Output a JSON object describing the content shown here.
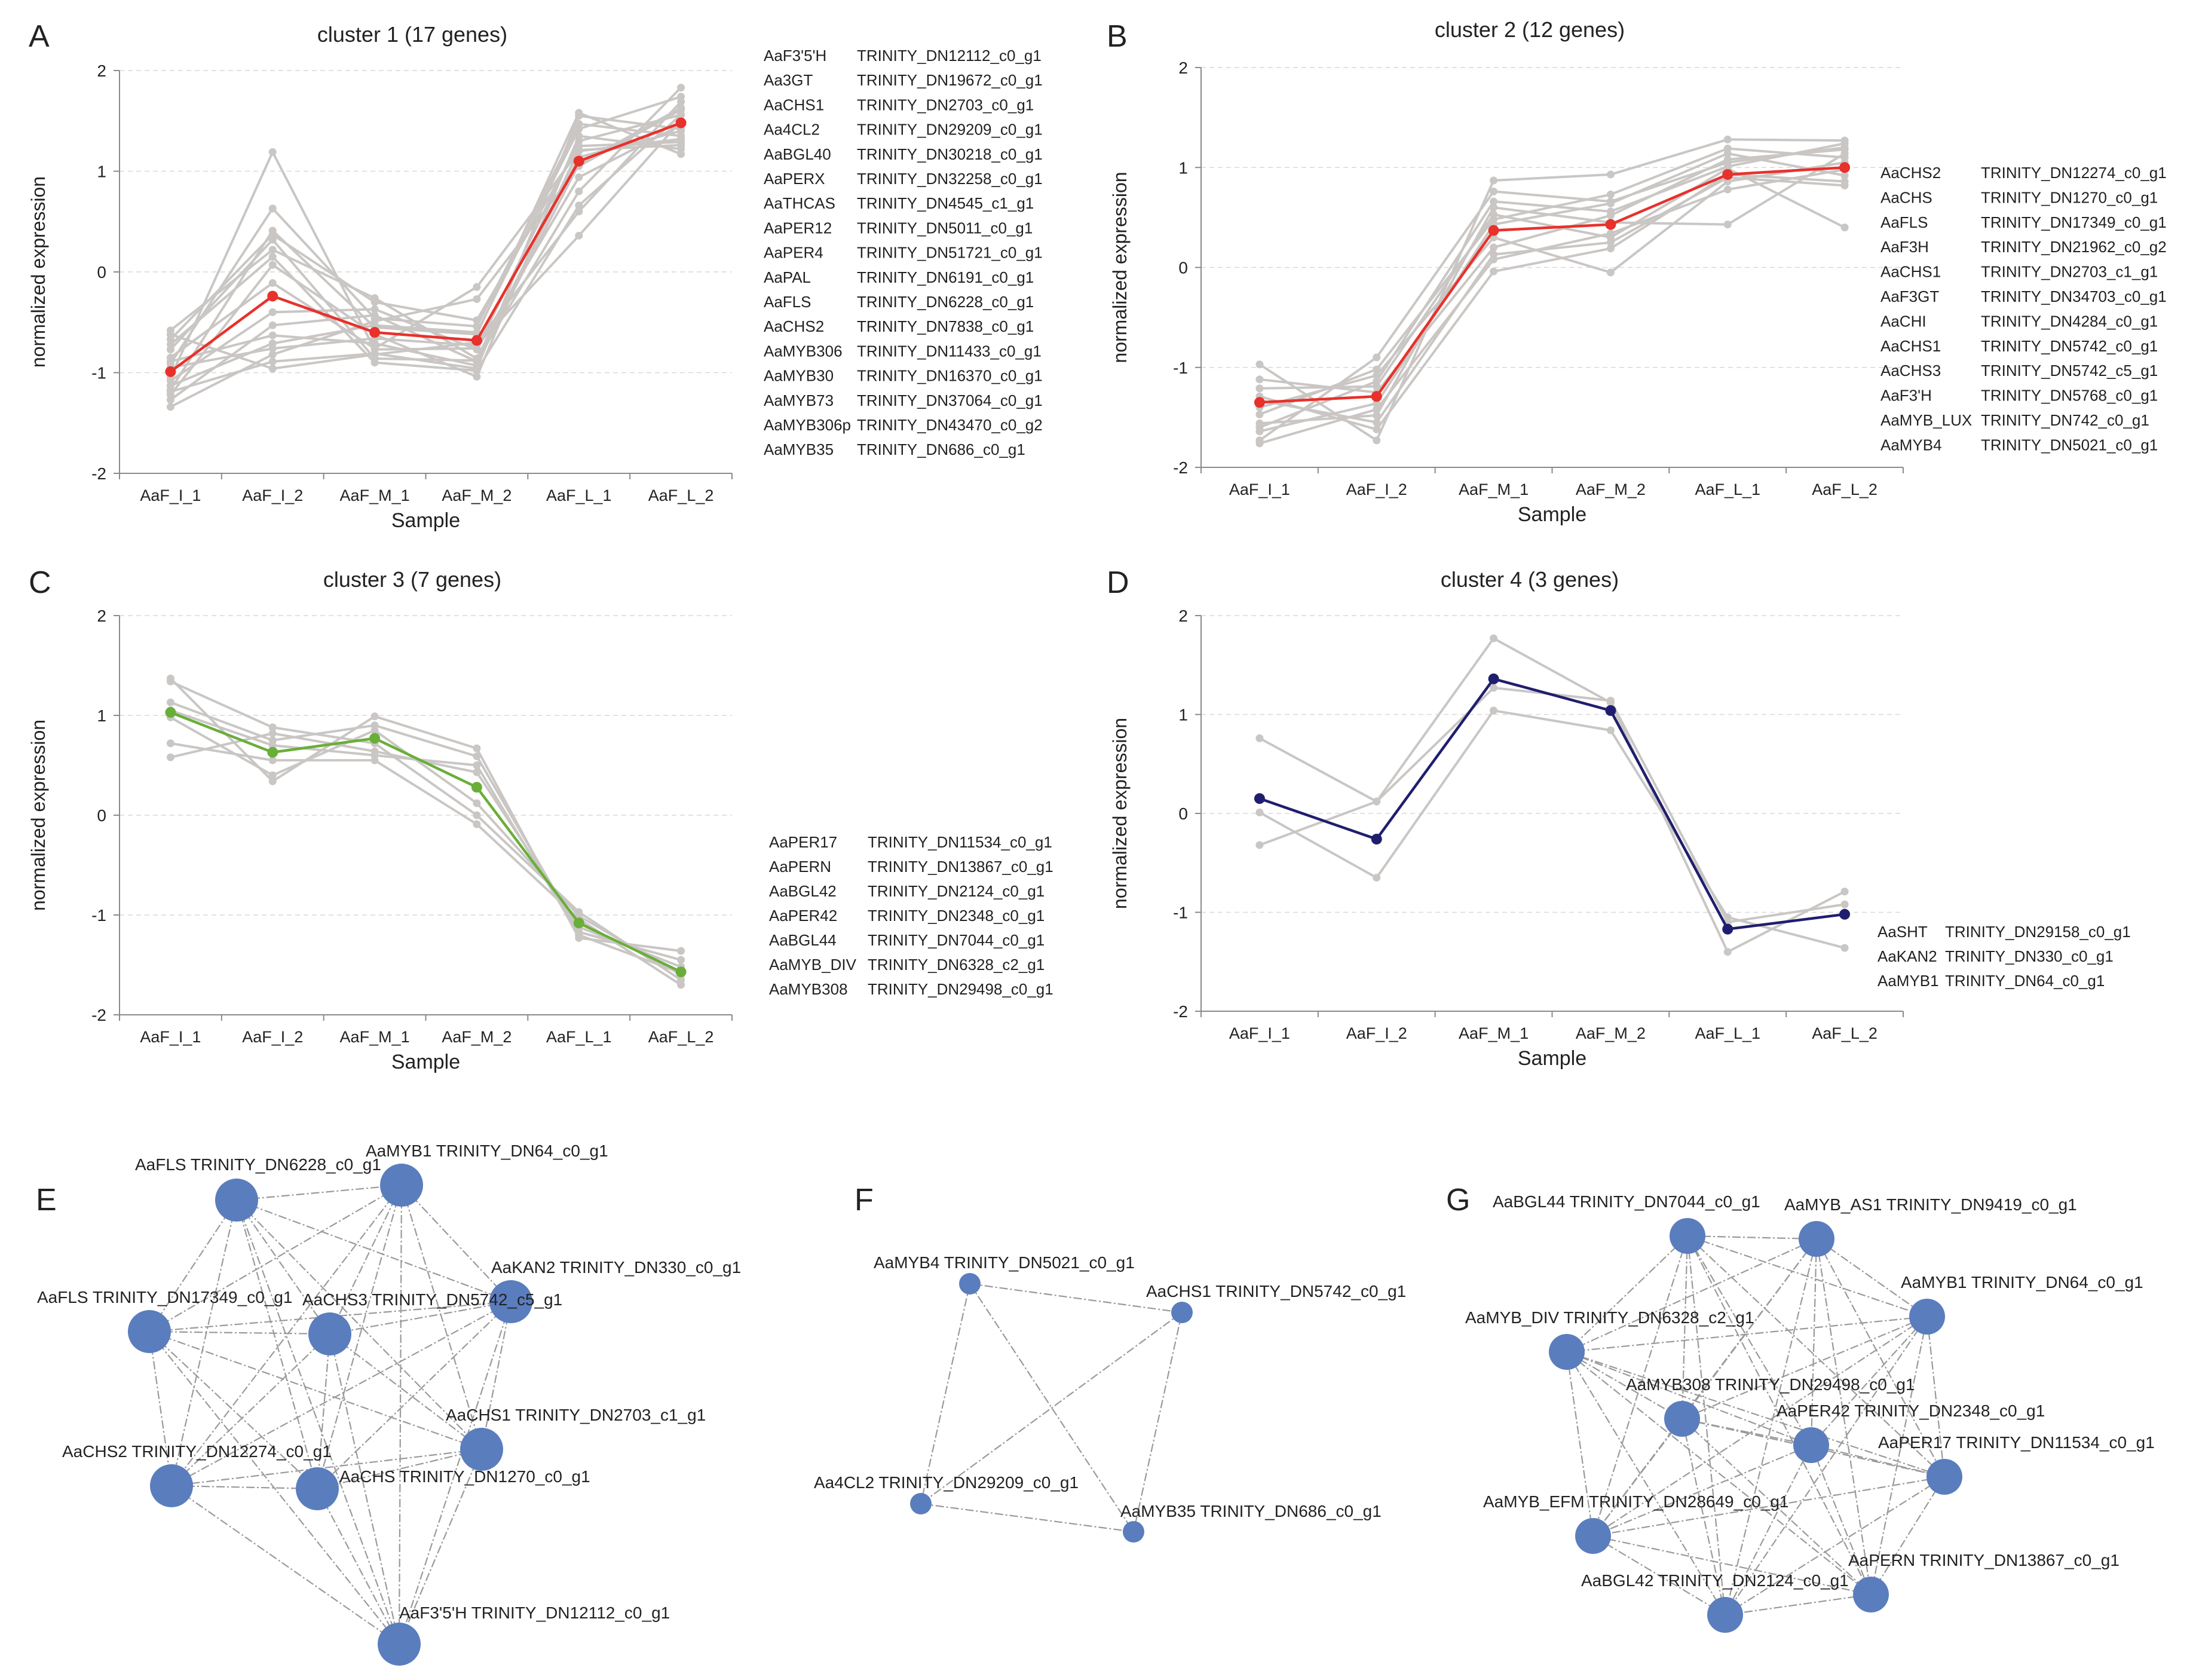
{
  "colors": {
    "background_line": "#c9c6c4",
    "cluster_1": "#e8312b",
    "cluster_2": "#e8312b",
    "cluster_3": "#6aae3a",
    "cluster_4": "#1f1e6e",
    "node": "#5a7dbd",
    "edge": "#9a9a9a",
    "grid": "#d9d9d9",
    "axis": "#8a8a8a",
    "text": "#222222"
  },
  "chart_data": [
    {
      "panel": "A",
      "type": "line",
      "title": "cluster 1 (17 genes)",
      "xlabel": "Sample",
      "ylabel": "normalized expression",
      "ylim": [
        -2,
        2
      ],
      "yticks": [
        "2",
        "1",
        "0",
        "-1",
        "-2"
      ],
      "categories": [
        "AaF_I_1",
        "AaF_I_2",
        "AaF_M_1",
        "AaF_M_2",
        "AaF_L_1",
        "AaF_L_2"
      ],
      "highlight_color": "#e8312b",
      "centroid": [
        -0.99,
        -0.24,
        -0.6,
        -0.68,
        1.1,
        1.48
      ],
      "series": [
        [
          -1.05,
          1.19,
          -0.77,
          -0.76,
          1.3,
          1.56
        ],
        [
          -0.91,
          0.63,
          -0.46,
          -0.54,
          1.47,
          1.35
        ],
        [
          -1.17,
          0.41,
          -0.55,
          -0.62,
          1.58,
          1.17
        ],
        [
          -0.77,
          0.32,
          -0.86,
          -0.88,
          0.8,
          1.83
        ],
        [
          -1.34,
          -0.82,
          -0.49,
          -0.27,
          1.05,
          1.61
        ],
        [
          -0.62,
          -0.96,
          -0.82,
          -0.7,
          0.6,
          1.69
        ],
        [
          -0.58,
          0.22,
          -0.26,
          -0.86,
          1.14,
          1.4
        ],
        [
          -0.89,
          -0.63,
          -0.71,
          -0.93,
          1.21,
          1.26
        ],
        [
          -1.22,
          0.07,
          -0.62,
          -1.04,
          1.35,
          1.22
        ],
        [
          -1.08,
          -0.4,
          -0.37,
          -0.77,
          0.94,
          1.46
        ],
        [
          -0.72,
          0.15,
          -0.9,
          -0.98,
          0.66,
          1.56
        ],
        [
          -1.13,
          -0.71,
          -0.53,
          -0.6,
          1.42,
          1.74
        ],
        [
          -0.85,
          -0.11,
          -0.76,
          -0.15,
          1.2,
          1.32
        ],
        [
          -1.27,
          -0.53,
          -0.43,
          -0.89,
          1.07,
          1.63
        ],
        [
          -0.95,
          -0.76,
          -0.66,
          -0.73,
          0.36,
          1.5
        ],
        [
          -0.67,
          0.37,
          -0.3,
          -0.48,
          1.25,
          1.29
        ],
        [
          -1.19,
          -0.89,
          -0.81,
          -0.96,
          1.55,
          1.42
        ]
      ],
      "legend": [
        [
          "AaF3'5'H",
          "TRINITY_DN12112_c0_g1"
        ],
        [
          "Aa3GT",
          "TRINITY_DN19672_c0_g1"
        ],
        [
          "AaCHS1",
          "TRINITY_DN2703_c0_g1"
        ],
        [
          "Aa4CL2",
          "TRINITY_DN29209_c0_g1"
        ],
        [
          "AaBGL40",
          "TRINITY_DN30218_c0_g1"
        ],
        [
          "AaPERX",
          "TRINITY_DN32258_c0_g1"
        ],
        [
          "AaTHCAS",
          "TRINITY_DN4545_c1_g1"
        ],
        [
          "AaPER12",
          "TRINITY_DN5011_c0_g1"
        ],
        [
          "AaPER4",
          "TRINITY_DN51721_c0_g1"
        ],
        [
          "AaPAL",
          "TRINITY_DN6191_c0_g1"
        ],
        [
          "AaFLS",
          "TRINITY_DN6228_c0_g1"
        ],
        [
          "AaCHS2",
          "TRINITY_DN7838_c0_g1"
        ],
        [
          "AaMYB306",
          "TRINITY_DN11433_c0_g1"
        ],
        [
          "AaMYB30",
          "TRINITY_DN16370_c0_g1"
        ],
        [
          "AaMYB73",
          "TRINITY_DN37064_c0_g1"
        ],
        [
          "AaMYB306p",
          "TRINITY_DN43470_c0_g2"
        ],
        [
          "AaMYB35",
          "TRINITY_DN686_c0_g1"
        ]
      ]
    },
    {
      "panel": "B",
      "type": "line",
      "title": "cluster 2 (12 genes)",
      "xlabel": "Sample",
      "ylabel": "normalized expression",
      "ylim": [
        -2,
        2
      ],
      "yticks": [
        "2",
        "1",
        "0",
        "-1",
        "-2"
      ],
      "categories": [
        "AaF_I_1",
        "AaF_I_2",
        "AaF_M_1",
        "AaF_M_2",
        "AaF_L_1",
        "AaF_L_2"
      ],
      "highlight_color": "#e8312b",
      "centroid": [
        -1.35,
        -1.29,
        0.37,
        0.43,
        0.93,
        1.0
      ],
      "series": [
        [
          -0.97,
          -1.73,
          0.87,
          0.93,
          1.28,
          1.27
        ],
        [
          -1.73,
          -0.9,
          0.76,
          0.66,
          1.05,
          1.2
        ],
        [
          -1.56,
          -1.48,
          0.6,
          0.45,
          0.43,
          1.14
        ],
        [
          -1.21,
          -1.19,
          0.53,
          0.3,
          0.99,
          0.4
        ],
        [
          -1.64,
          -1.36,
          0.43,
          0.64,
          1.14,
          0.92
        ],
        [
          -1.4,
          -1.08,
          0.3,
          -0.05,
          0.86,
          1.05
        ],
        [
          -1.29,
          -1.62,
          -0.04,
          0.19,
          0.93,
          0.86
        ],
        [
          -1.12,
          -1.25,
          0.2,
          0.52,
          1.08,
          1.18
        ],
        [
          -1.76,
          -1.42,
          0.08,
          0.34,
          0.78,
          0.98
        ],
        [
          -1.47,
          -1.02,
          0.48,
          0.73,
          1.19,
          1.1
        ],
        [
          -1.33,
          -1.55,
          0.13,
          0.25,
          0.9,
          0.82
        ],
        [
          -1.6,
          -1.14,
          0.66,
          0.56,
          1.01,
          1.24
        ]
      ],
      "legend": [
        [
          "AaCHS2",
          "TRINITY_DN12274_c0_g1"
        ],
        [
          "AaCHS",
          "TRINITY_DN1270_c0_g1"
        ],
        [
          "AaFLS",
          "TRINITY_DN17349_c0_g1"
        ],
        [
          "AaF3H",
          "TRINITY_DN21962_c0_g2"
        ],
        [
          "AaCHS1",
          "TRINITY_DN2703_c1_g1"
        ],
        [
          "AaF3GT",
          "TRINITY_DN34703_c0_g1"
        ],
        [
          "AaCHI",
          "TRINITY_DN4284_c0_g1"
        ],
        [
          "AaCHS1",
          "TRINITY_DN5742_c0_g1"
        ],
        [
          "AaCHS3",
          "TRINITY_DN5742_c5_g1"
        ],
        [
          "AaF3'H",
          "TRINITY_DN5768_c0_g1"
        ],
        [
          "AaMYB_LUX",
          "TRINITY_DN742_c0_g1"
        ],
        [
          "AaMYB4",
          "TRINITY_DN5021_c0_g1"
        ]
      ]
    },
    {
      "panel": "C",
      "type": "line",
      "title": "cluster 3 (7 genes)",
      "xlabel": "Sample",
      "ylabel": "normalized expression",
      "ylim": [
        -2,
        2
      ],
      "yticks": [
        "2",
        "1",
        "0",
        "-1",
        "-2"
      ],
      "categories": [
        "AaF_I_1",
        "AaF_I_2",
        "AaF_M_1",
        "AaF_M_2",
        "AaF_L_1",
        "AaF_L_2"
      ],
      "highlight_color": "#6aae3a",
      "centroid": [
        1.03,
        0.63,
        0.77,
        0.28,
        -1.08,
        -1.57
      ],
      "series": [
        [
          1.37,
          0.34,
          0.99,
          0.67,
          -1.23,
          -1.36
        ],
        [
          1.34,
          0.88,
          0.72,
          0.0,
          -0.97,
          -1.65
        ],
        [
          1.13,
          0.75,
          0.9,
          0.59,
          -1.17,
          -1.45
        ],
        [
          0.72,
          0.55,
          0.55,
          -0.09,
          -1.04,
          -1.7
        ],
        [
          0.58,
          0.82,
          0.64,
          0.43,
          -1.12,
          -1.52
        ],
        [
          0.98,
          0.4,
          0.85,
          0.12,
          -1.01,
          -1.6
        ],
        [
          1.05,
          0.7,
          0.6,
          0.5,
          -1.2,
          -1.58
        ]
      ],
      "legend": [
        [
          "AaPER17",
          "TRINITY_DN11534_c0_g1"
        ],
        [
          "AaPERN",
          "TRINITY_DN13867_c0_g1"
        ],
        [
          "AaBGL42",
          "TRINITY_DN2124_c0_g1"
        ],
        [
          "AaPER42",
          "TRINITY_DN2348_c0_g1"
        ],
        [
          "AaBGL44",
          "TRINITY_DN7044_c0_g1"
        ],
        [
          "AaMYB_DIV",
          "TRINITY_DN6328_c2_g1"
        ],
        [
          "AaMYB308",
          "TRINITY_DN29498_c0_g1"
        ]
      ]
    },
    {
      "panel": "D",
      "type": "line",
      "title": "cluster 4 (3 genes)",
      "xlabel": "Sample",
      "ylabel": "normalized expression",
      "ylim": [
        -2,
        2
      ],
      "yticks": [
        "2",
        "1",
        "0",
        "-1",
        "-2"
      ],
      "categories": [
        "AaF_I_1",
        "AaF_I_2",
        "AaF_M_1",
        "AaF_M_2",
        "AaF_L_1",
        "AaF_L_2"
      ],
      "highlight_color": "#1f1e6e",
      "centroid": [
        0.15,
        -0.26,
        1.36,
        1.04,
        -1.17,
        -1.02
      ],
      "series": [
        [
          0.76,
          0.12,
          1.77,
          1.12,
          -1.4,
          -0.79
        ],
        [
          0.01,
          -0.65,
          1.04,
          0.84,
          -1.05,
          -1.36
        ],
        [
          -0.32,
          0.12,
          1.27,
          1.14,
          -1.1,
          -0.92
        ]
      ],
      "legend": [
        [
          "AaSHT",
          "TRINITY_DN29158_c0_g1"
        ],
        [
          "AaKAN2",
          "TRINITY_DN330_c0_g1"
        ],
        [
          "AaMYB1",
          "TRINITY_DN64_c0_g1"
        ]
      ]
    }
  ],
  "networks": [
    {
      "panel": "E",
      "nodes": [
        "AaFLS TRINITY_DN6228_c0_g1",
        "AaMYB1 TRINITY_DN64_c0_g1",
        "AaKAN2  TRINITY_DN330_c0_g1",
        "AaFLS TRINITY_DN17349_c0_g1",
        "AaCHS3 TRINITY_DN5742_c5_g1",
        "AaCHS1 TRINITY_DN2703_c1_g1",
        "AaCHS2 TRINITY_DN12274_c0_g1",
        "AaCHS TRINITY_DN1270_c0_g1",
        "AaF3'5'H TRINITY_DN12112_c0_g1"
      ]
    },
    {
      "panel": "F",
      "nodes": [
        "AaMYB4 TRINITY_DN5021_c0_g1",
        "AaCHS1 TRINITY_DN5742_c0_g1",
        "Aa4CL2 TRINITY_DN29209_c0_g1",
        "AaMYB35 TRINITY_DN686_c0_g1"
      ]
    },
    {
      "panel": "G",
      "nodes": [
        "AaBGL44 TRINITY_DN7044_c0_g1",
        "AaMYB_AS1 TRINITY_DN9419_c0_g1",
        "AaMYB1 TRINITY_DN64_c0_g1",
        "AaMYB_DIV TRINITY_DN6328_c2_g1",
        "AaMYB308 TRINITY_DN29498_c0_g1",
        "AaPER42 TRINITY_DN2348_c0_g1",
        "AaPER17 TRINITY_DN11534_c0_g1",
        "AaMYB_EFM TRINITY_DN28649_c0_g1",
        "AaPERN TRINITY_DN13867_c0_g1",
        "AaBGL42 TRINITY_DN2124_c0_g1"
      ]
    }
  ]
}
